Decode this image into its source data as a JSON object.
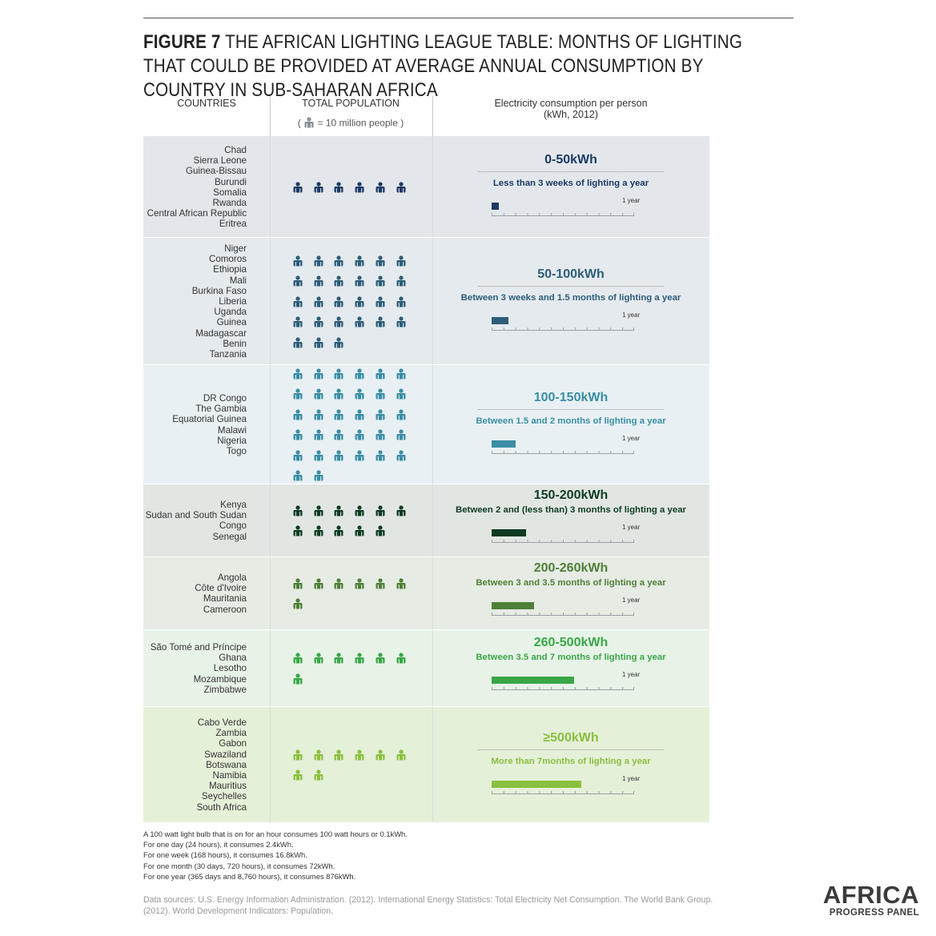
{
  "title": {
    "figure": "FIGURE 7",
    "text": " THE AFRICAN LIGHTING LEAGUE TABLE: MONTHS OF LIGHTING THAT COULD BE PROVIDED AT AVERAGE ANNUAL CONSUMPTION BY COUNTRY IN SUB-SAHARAN AFRICA"
  },
  "headers": {
    "countries": "COUNTRIES",
    "population": "TOTAL POPULATION",
    "legend_open": "(",
    "legend_text": "= 10 million people",
    "legend_close": ")",
    "electricity": "Electricity consumption per person",
    "electricity_unit": "(kWh, 2012)"
  },
  "chart_data": {
    "type": "table",
    "unit_person": "10 million people",
    "bar_max_label": "1 year",
    "rows": [
      {
        "range": "0-50kWh",
        "description": "Less than 3 weeks of lighting a year",
        "countries": [
          "Chad",
          "Sierra Leone",
          "Guinea-Bissau",
          "Burundi",
          "Somalia",
          "Rwanda",
          "Central African Republic",
          "Eritrea"
        ],
        "persons": 6,
        "lighting_fraction_of_year": 0.05,
        "color": "#1c3a63",
        "bg": "#e3e7ec"
      },
      {
        "range": "50-100kWh",
        "description": "Between 3 weeks and 1.5 months of lighting a year",
        "countries": [
          "Niger",
          "Comoros",
          "Ethiopia",
          "Mali",
          "Burkina Faso",
          "Liberia",
          "Uganda",
          "Guinea",
          "Madagascar",
          "Benin",
          "Tanzania"
        ],
        "persons": 27,
        "lighting_fraction_of_year": 0.12,
        "color": "#2d5d78",
        "bg": "#e5eaee"
      },
      {
        "range": "100-150kWh",
        "description": "Between 1.5 and 2 months of lighting a year",
        "countries": [
          "DR Congo",
          "The Gambia",
          "Equatorial Guinea",
          "Malawi",
          "Nigeria",
          "Togo"
        ],
        "persons": 32,
        "lighting_fraction_of_year": 0.17,
        "color": "#3a8ea5",
        "bg": "#e8f0f3"
      },
      {
        "range": "150-200kWh",
        "description": "Between 2 and (less than) 3 months of lighting a year",
        "countries": [
          "Kenya",
          "Sudan and South Sudan",
          "Congo",
          "Senegal"
        ],
        "persons": 11,
        "lighting_fraction_of_year": 0.24,
        "color": "#0e3b22",
        "bg": "#e2e6e3"
      },
      {
        "range": "200-260kWh",
        "description": "Between 3 and 3.5 months of lighting a year",
        "countries": [
          "Angola",
          "Côte d'Ivoire",
          "Mauritania",
          "Cameroon"
        ],
        "persons": 7,
        "lighting_fraction_of_year": 0.3,
        "color": "#4f8038",
        "bg": "#e6ebe4"
      },
      {
        "range": "260-500kWh",
        "description": "Between 3.5 and 7 months of lighting a year",
        "countries": [
          "São Tomé and Príncipe",
          "Ghana",
          "Lesotho",
          "Mozambique",
          "Zimbabwe"
        ],
        "persons": 7,
        "lighting_fraction_of_year": 0.58,
        "color": "#3aa647",
        "bg": "#e8f3e8"
      },
      {
        "range": "≥500kWh",
        "description": "More than 7months of lighting a year",
        "countries": [
          "Cabo Verde",
          "Zambia",
          "Gabon",
          "Swaziland",
          "Botswana",
          "Namibia",
          "Mauritius",
          "Seychelles",
          "South Africa"
        ],
        "persons": 8,
        "lighting_fraction_of_year": 0.63,
        "color": "#8bbf3f",
        "bg": "#e5f0d9"
      }
    ]
  },
  "notes": [
    "A 100 watt light bulb that is on for an hour consumes 100 watt hours or 0.1kWh.",
    "For one day (24 hours), it consumes 2.4kWh.",
    "For one week (168 hours), it consumes 16.8kWh.",
    "For one month (30 days, 720 hours), it consumes 72kWh.",
    "For one year (365 days and 8,760 hours), it consumes 876kWh."
  ],
  "sources": "Data sources: U.S. Energy Information Administration. (2012). International Energy Statistics: Total Electricity Net Consumption. The World Bank Group. (2012). World Development Indicators: Population.",
  "logo": {
    "line1": "AFRICA",
    "line2": "PROGRESS PANEL"
  }
}
